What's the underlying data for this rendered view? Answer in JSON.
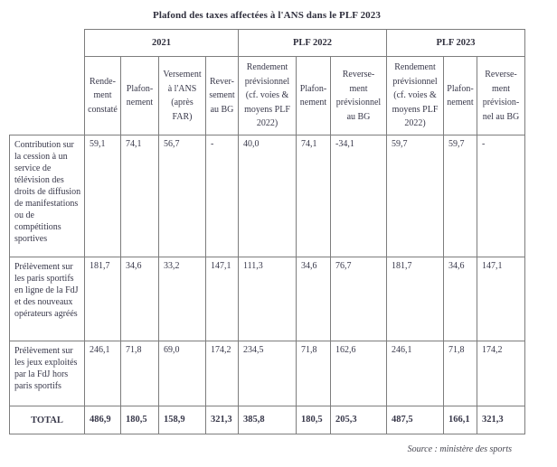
{
  "title": "Plafond des taxes affectées à l'ANS dans le PLF 2023",
  "source": "Source : ministère des sports",
  "colors": {
    "text": "#38384a",
    "border": "#7d7d7d",
    "background": "#ffffff"
  },
  "table": {
    "groups": [
      {
        "label": "2021",
        "span": 4
      },
      {
        "label": "PLF 2022",
        "span": 3
      },
      {
        "label": "PLF 2023",
        "span": 3
      }
    ],
    "columns": [
      "Rende-\nment\nconstaté",
      "Plafon-\nnement",
      "Versement\nà l'ANS\n(après\nFAR)",
      "Rever-\nsement\nau BG",
      "Rendement\nprévisionnel\n(cf. voies &\nmoyens PLF\n2022)",
      "Plafon-\nnement",
      "Reverse-\nment\nprévisionnel\nau BG",
      "Rendement\nprévisionnel\n(cf. voies &\nmoyens PLF\n2022)",
      "Plafon-\nnement",
      "Reverse-\nment\nprévision-\nnel au BG"
    ],
    "rows": [
      {
        "label": "Contribution sur la cession à un service de télévision des droits de diffusion de manifestations ou de compétitions sportives",
        "values": [
          "59,1",
          "74,1",
          "56,7",
          "-",
          "40,0",
          "74,1",
          "-34,1",
          "59,7",
          "59,7",
          "-"
        ]
      },
      {
        "label": "Prélèvement sur les paris sportifs en ligne de la FdJ et des nouveaux opérateurs agréés",
        "values": [
          "181,7",
          "34,6",
          "33,2",
          "147,1",
          "111,3",
          "34,6",
          "76,7",
          "181,7",
          "34,6",
          "147,1"
        ]
      },
      {
        "label": "Prélèvement sur les jeux exploités par la FdJ hors paris sportifs",
        "values": [
          "246,1",
          "71,8",
          "69,0",
          "174,2",
          "234,5",
          "71,8",
          "162,6",
          "246,1",
          "71,8",
          "174,2"
        ]
      }
    ],
    "total": {
      "label": "TOTAL",
      "values": [
        "486,9",
        "180,5",
        "158,9",
        "321,3",
        "385,8",
        "180,5",
        "205,3",
        "487,5",
        "166,1",
        "321,3"
      ]
    }
  }
}
